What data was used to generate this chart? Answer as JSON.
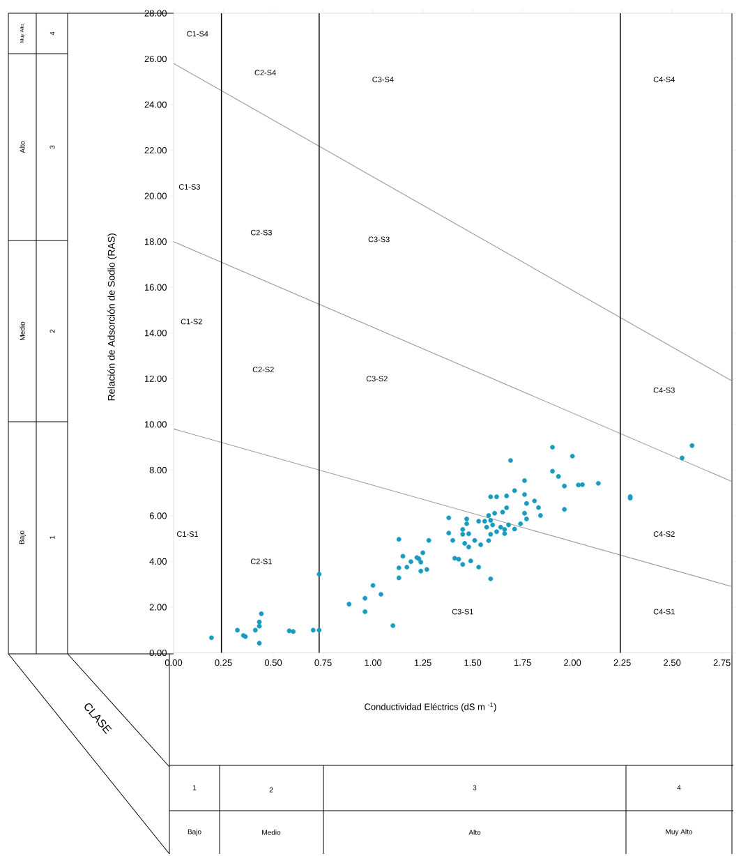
{
  "chart_data": {
    "type": "scatter",
    "xlabel": "Conductividad Eléctrics (dS m $^{-1}$)",
    "ylabel": "Relación de Adsorción de Sodio (RAS)",
    "xlim": [
      0,
      2.8
    ],
    "ylim": [
      0,
      28
    ],
    "xticks": [
      {
        "value": 0,
        "label": "0.00"
      },
      {
        "value": 0.25,
        "label": "0.25"
      },
      {
        "value": 0.5,
        "label": "0.50"
      },
      {
        "value": 0.75,
        "label": "0.75"
      },
      {
        "value": 1,
        "label": "1.00"
      },
      {
        "value": 1.25,
        "label": "1.25"
      },
      {
        "value": 1.5,
        "label": "1.50"
      },
      {
        "value": 1.75,
        "label": "1.75"
      },
      {
        "value": 2,
        "label": "2.00"
      },
      {
        "value": 2.25,
        "label": "2.25"
      },
      {
        "value": 2.5,
        "label": "2.50"
      },
      {
        "value": 2.75,
        "label": "2.75"
      }
    ],
    "yticks": [
      {
        "value": 0,
        "label": "0.00"
      },
      {
        "value": 2,
        "label": "2.00"
      },
      {
        "value": 4,
        "label": "4.00"
      },
      {
        "value": 6,
        "label": "6.00"
      },
      {
        "value": 8,
        "label": "8.00"
      },
      {
        "value": 10,
        "label": "10.00"
      },
      {
        "value": 12,
        "label": "12.00"
      },
      {
        "value": 14,
        "label": "14.00"
      },
      {
        "value": 16,
        "label": "16.00"
      },
      {
        "value": 18,
        "label": "18.00"
      },
      {
        "value": 20,
        "label": "20.00"
      },
      {
        "value": 22,
        "label": "22.00"
      },
      {
        "value": 24,
        "label": "24.00"
      },
      {
        "value": 26,
        "label": "26.00"
      },
      {
        "value": 28,
        "label": "28.00"
      }
    ],
    "series": [
      {
        "marker": "circle",
        "color": "#1a9bbd",
        "x": [
          0.19,
          0.32,
          0.35,
          0.36,
          0.41,
          0.43,
          0.43,
          0.43,
          0.44,
          0.58,
          0.6,
          0.7,
          0.73,
          0.73,
          0.88,
          0.96,
          0.96,
          1.0,
          1.04,
          1.1,
          1.13,
          1.13,
          1.13,
          1.15,
          1.17,
          1.19,
          1.22,
          1.23,
          1.24,
          1.25,
          1.24,
          1.27,
          1.28,
          1.38,
          1.9,
          2.0,
          1.69,
          1.9,
          1.93,
          1.76,
          1.96,
          2.03,
          2.05,
          2.13,
          2.6,
          2.55,
          2.29,
          2.29,
          1.96,
          1.71,
          1.76,
          1.59,
          1.62,
          1.67,
          1.77,
          1.81,
          1.83,
          1.84,
          1.67,
          1.65,
          1.61,
          1.58,
          1.76,
          1.77,
          1.74,
          1.47,
          1.47,
          1.45,
          1.53,
          1.56,
          1.59,
          1.6,
          1.57,
          1.68,
          1.64,
          1.66,
          1.71,
          1.38,
          1.45,
          1.48,
          1.62,
          1.66,
          1.59,
          1.4,
          1.46,
          1.48,
          1.51,
          1.54,
          1.58,
          1.41,
          1.43,
          1.45,
          1.49,
          1.53,
          1.59
        ],
        "values": [
          0.66,
          0.99,
          0.76,
          0.71,
          0.99,
          0.42,
          1.35,
          1.17,
          1.71,
          0.96,
          0.93,
          0.99,
          0.99,
          3.44,
          2.13,
          2.39,
          1.8,
          2.95,
          2.56,
          1.19,
          3.28,
          3.72,
          4.97,
          4.23,
          3.75,
          3.99,
          4.17,
          4.12,
          3.97,
          4.38,
          3.58,
          3.65,
          4.92,
          5.91,
          9.0,
          8.61,
          8.42,
          7.95,
          7.72,
          7.54,
          7.3,
          7.35,
          7.36,
          7.42,
          9.07,
          8.53,
          6.84,
          6.77,
          6.28,
          7.1,
          6.93,
          6.83,
          6.83,
          6.87,
          6.54,
          6.65,
          6.36,
          6.01,
          6.35,
          6.16,
          6.11,
          6.01,
          6.11,
          5.86,
          5.65,
          5.86,
          5.65,
          5.4,
          5.76,
          5.76,
          5.8,
          5.6,
          5.5,
          5.6,
          5.5,
          5.4,
          5.42,
          5.24,
          5.19,
          5.21,
          5.3,
          5.22,
          5.19,
          4.92,
          4.79,
          4.63,
          4.92,
          4.73,
          4.91,
          4.14,
          4.1,
          3.87,
          4.02,
          3.75,
          3.24
        ]
      },
      {
        "type": "line",
        "marker": "none",
        "color": "#999999",
        "x": [
          0,
          2.8
        ],
        "values": [
          9.8,
          2.9
        ]
      },
      {
        "type": "line",
        "marker": "none",
        "color": "#999999",
        "x": [
          0,
          2.8
        ],
        "values": [
          18.0,
          7.5
        ]
      },
      {
        "type": "line",
        "marker": "none",
        "color": "#999999",
        "x": [
          0,
          2.8
        ],
        "values": [
          25.8,
          11.9
        ]
      }
    ],
    "ref_lines": [
      {
        "axis": "x",
        "value": 0.24,
        "color": "#000000"
      },
      {
        "axis": "x",
        "value": 0.73,
        "color": "#000000"
      },
      {
        "axis": "x",
        "value": 2.24,
        "color": "#000000"
      }
    ],
    "annotations": [
      "C1-S4",
      "C2-S4",
      "C3-S4",
      "C4-S4",
      "C1-S3",
      "C2-S3",
      "C3-S3",
      "C1-S2",
      "C2-S2",
      "C3-S2",
      "C4-S3",
      "C1-S1",
      "C2-S1",
      "C3-S1",
      "C4-S2",
      "C4-S1",
      "Muy Alto",
      "4",
      "Alto",
      "3",
      "Medio",
      "2",
      "Bajo",
      "1",
      "CLASE",
      "1",
      "2",
      "3",
      "4",
      "Bajo",
      "Medio",
      "Alto",
      "Muy Alto"
    ]
  }
}
